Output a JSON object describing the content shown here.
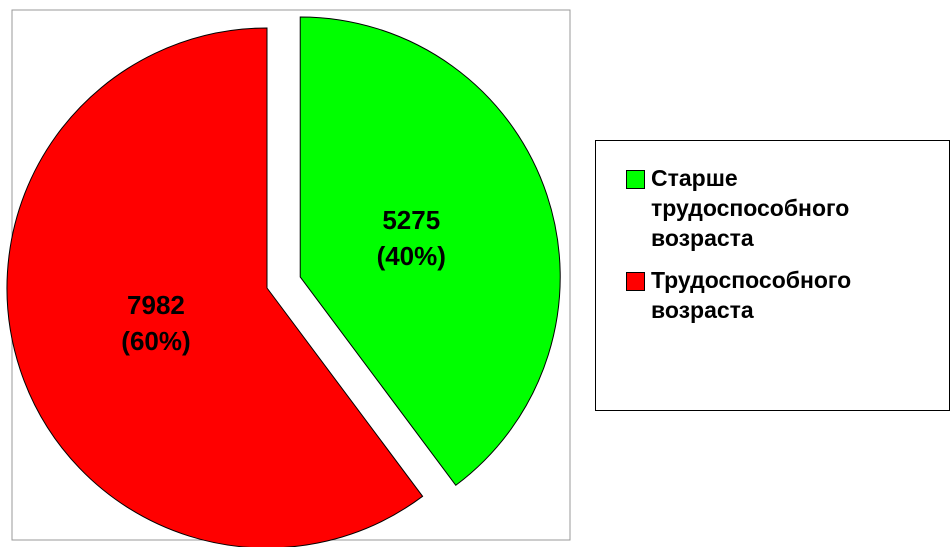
{
  "chart_data": {
    "type": "pie",
    "categories": [
      "Старше трудоспособного возраста",
      "Трудоспособного возраста"
    ],
    "values": [
      5275,
      7982
    ],
    "value_labels": [
      [
        "5275",
        "(40%)"
      ],
      [
        "7982",
        "(60%)"
      ]
    ],
    "colors": [
      "#00ff00",
      "#ff0000"
    ],
    "legend": "right"
  }
}
